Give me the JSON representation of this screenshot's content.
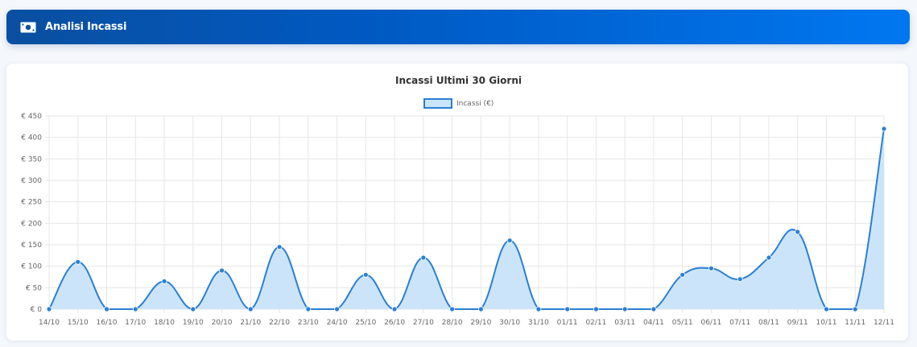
{
  "header": {
    "icon": "money-bill-icon",
    "title": "Analisi Incassi",
    "gradient_start": "#0a4fa0",
    "gradient_end": "#0077f0"
  },
  "chart_data": {
    "type": "line",
    "title": "Incassi Ultimi 30 Giorni",
    "xlabel": "",
    "ylabel": "",
    "ylim": [
      0,
      450
    ],
    "y_ticks": [
      "€ 0",
      "€ 50",
      "€ 100",
      "€ 150",
      "€ 200",
      "€ 250",
      "€ 300",
      "€ 350",
      "€ 400",
      "€ 450"
    ],
    "grid": true,
    "legend_position": "top",
    "fill": true,
    "line_color": "#2a7fd4",
    "fill_color": "#cce4fa",
    "categories": [
      "14/10",
      "15/10",
      "16/10",
      "17/10",
      "18/10",
      "19/10",
      "20/10",
      "21/10",
      "22/10",
      "23/10",
      "24/10",
      "25/10",
      "26/10",
      "27/10",
      "28/10",
      "29/10",
      "30/10",
      "31/10",
      "01/11",
      "02/11",
      "03/11",
      "04/11",
      "05/11",
      "06/11",
      "07/11",
      "08/11",
      "09/11",
      "10/11",
      "11/11",
      "12/11"
    ],
    "series": [
      {
        "name": "Incassi (€)",
        "values": [
          0,
          110,
          0,
          0,
          65,
          0,
          90,
          0,
          145,
          0,
          0,
          80,
          0,
          120,
          0,
          0,
          160,
          0,
          0,
          0,
          0,
          0,
          80,
          95,
          70,
          120,
          180,
          0,
          0,
          420
        ]
      }
    ]
  }
}
